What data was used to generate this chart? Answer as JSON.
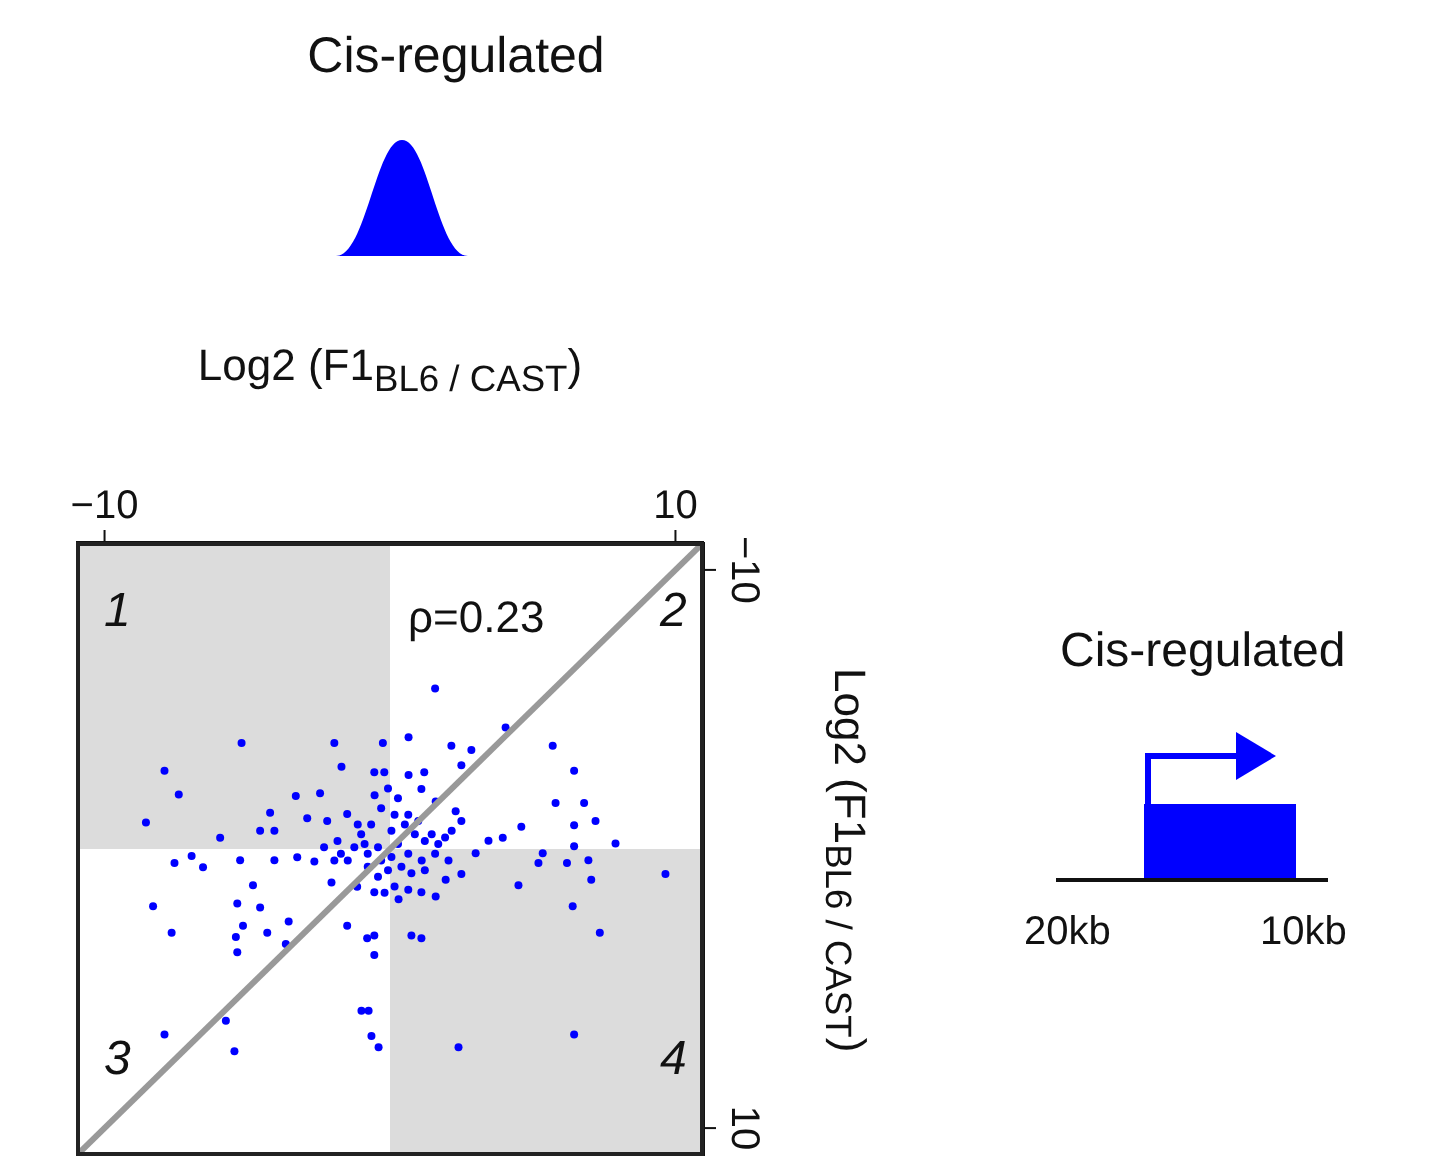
{
  "chart_data": {
    "type": "scatter",
    "title": "Cis-regulated",
    "xlabel": "Log2 (F1$_{BL6 / CAST}$)",
    "ylabel": "Log2 (F1$_{BL6 / CAST}$)",
    "xlim": [
      -11,
      11
    ],
    "ylim": [
      11,
      -11
    ],
    "xticks": [
      {
        "value": -10,
        "label": "−10"
      },
      10
    ],
    "yticks": [
      {
        "value": -10,
        "label": "−10"
      },
      10
    ],
    "annotations": [
      "ρ=0.23",
      "1",
      "2",
      "3",
      "4",
      "Cis-regulated",
      "20kb",
      "10kb"
    ],
    "series": [
      {
        "type": "scatter",
        "color": "#0000ff",
        "marker": "circle",
        "x": [
          1.58,
          4.05,
          5.7,
          6.45,
          5.8,
          6.8,
          6.45,
          7.2,
          7.9,
          6.45,
          9.65,
          6.95,
          7.05,
          6.2,
          5.2,
          4.5,
          6.4,
          7.35,
          6.45,
          2.4,
          -0.4,
          -0.65,
          -1.0,
          -0.75,
          -5.45,
          -5.75,
          -7.9,
          -8.3,
          -7.65,
          -5.35,
          -5.4,
          -5.15,
          -4.3,
          -3.55,
          -3.65,
          -4.55,
          -5.35,
          -4.8,
          -1.5,
          -0.55,
          -0.55,
          -0.8,
          0.75,
          1.1,
          -8.55,
          -7.4,
          -7.9,
          -5.2,
          -1.95,
          -0.25,
          -1.7,
          0.65,
          2.15,
          2.85,
          -3.3,
          -2.45,
          -4.2,
          -4.05,
          -5.95,
          -7.55,
          -6.55,
          -6.95,
          -5.25,
          -4.05,
          -3.25,
          -2.65,
          -2.05,
          -4.55,
          -2.9,
          -2.2,
          -1.5,
          3.95,
          4.6,
          3.45,
          5.35,
          2.5,
          3.0,
          1.95,
          1.6,
          1.1,
          0.3,
          -0.55,
          -1.15,
          2.5,
          2.3,
          1.6,
          1.1,
          2.5,
          1.2,
          -0.55,
          -0.2,
          0.65,
          -0.31,
          0.16,
          0.52,
          0.87,
          1.22,
          1.46,
          1.69,
          1.93,
          2.16,
          0.05,
          0.28,
          -0.42,
          -0.78,
          -0.31,
          0.05,
          0.64,
          1.11,
          -0.78,
          -0.42,
          -0.07,
          0.4,
          0.75,
          1.22,
          -0.89,
          -0.66,
          -0.54,
          -0.07,
          0.28,
          0.64,
          0.99,
          -1.01,
          -1.25,
          -1.48,
          -1.72,
          -1.84,
          -1.13,
          -2.31,
          -1.95,
          2.05,
          1.58,
          0.16,
          -0.19,
          0.64
        ],
        "values": [
          -5.75,
          -4.35,
          -3.7,
          -2.8,
          -1.65,
          -1.65,
          -0.85,
          -1.0,
          -0.2,
          -0.1,
          0.9,
          0.4,
          1.1,
          0.5,
          0.5,
          1.3,
          2.05,
          3.0,
          6.65,
          7.1,
          7.1,
          6.7,
          5.8,
          5.8,
          7.25,
          6.15,
          6.65,
          2.05,
          3.0,
          3.7,
          3.15,
          2.75,
          3.0,
          2.6,
          3.4,
          2.1,
          1.95,
          1.3,
          2.75,
          3.1,
          3.8,
          3.2,
          3.1,
          3.2,
          -0.95,
          -1.95,
          -2.8,
          -3.8,
          -3.8,
          -3.8,
          -2.95,
          -4.0,
          -3.7,
          -3.55,
          -1.9,
          -2.0,
          -1.3,
          -0.65,
          -0.4,
          0.5,
          0.65,
          0.25,
          0.4,
          0.4,
          0.3,
          0.45,
          1.2,
          -0.65,
          -1.1,
          -1.0,
          -1.25,
          -0.4,
          -0.8,
          -0.3,
          0.15,
          0.9,
          0.15,
          1.1,
          1.7,
          1.55,
          1.8,
          1.55,
          1.35,
          -1.0,
          -1.35,
          -1.7,
          -2.15,
          -3.0,
          -2.75,
          -2.75,
          -2.75,
          -2.65,
          -1.46,
          -1.23,
          -0.88,
          -0.53,
          -0.29,
          -0.53,
          -0.18,
          -0.41,
          -0.65,
          -0.65,
          -0.18,
          -0.06,
          0.17,
          0.41,
          0.29,
          0.17,
          0.41,
          0.64,
          0.99,
          0.76,
          0.64,
          0.87,
          0.76,
          -0.18,
          -0.88,
          -1.93,
          -2.17,
          -1.82,
          -1.23,
          -1.0,
          -0.53,
          -0.06,
          0.41,
          0.17,
          -0.29,
          -0.88,
          -0.06,
          0.41,
          0.41,
          0.17,
          1.34,
          1.57,
          1.46
        ]
      },
      {
        "type": "line",
        "color": "#999999",
        "marker": "none",
        "x": [
          -11,
          11
        ],
        "values": [
          11,
          -11
        ]
      }
    ]
  }
}
